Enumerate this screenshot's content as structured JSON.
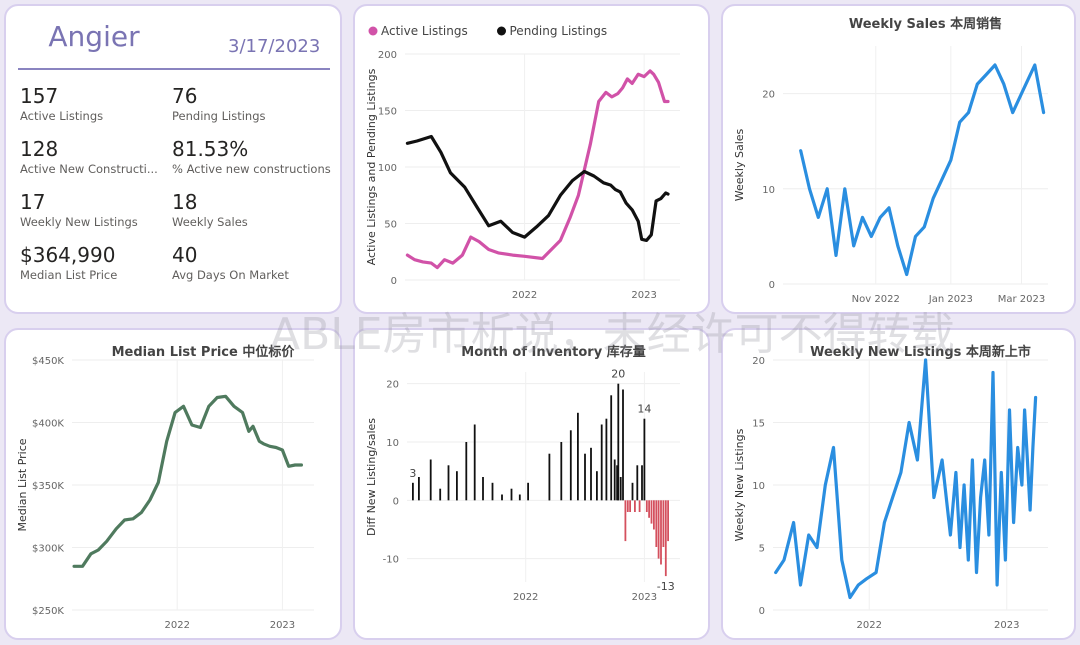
{
  "kpi": {
    "location": "Angier",
    "date": "3/17/2023",
    "items": [
      {
        "value": "157",
        "label": "Active Listings"
      },
      {
        "value": "76",
        "label": "Pending Listings"
      },
      {
        "value": "128",
        "label": "Active New Constructi..."
      },
      {
        "value": "81.53%",
        "label": "% Active new constructions"
      },
      {
        "value": "17",
        "label": "Weekly New Listings"
      },
      {
        "value": "18",
        "label": "Weekly Sales"
      },
      {
        "value": "$364,990",
        "label": "Median List Price"
      },
      {
        "value": "40",
        "label": "Avg Days On Market"
      }
    ]
  },
  "watermark": "ABLE房市析说，未经许可不得转载",
  "chart_data": [
    {
      "id": "listings",
      "type": "line",
      "title": "",
      "ylabel": "Active Listings and Pending Listings",
      "legend_position": "top-left",
      "xlim": [
        2021.0,
        2023.3
      ],
      "ylim": [
        0,
        200
      ],
      "yticks": [
        0,
        50,
        100,
        150,
        200
      ],
      "xticks": [
        {
          "v": 2022.0,
          "label": "2022"
        },
        {
          "v": 2023.0,
          "label": "2023"
        }
      ],
      "series": [
        {
          "name": "Active Listings",
          "color": "#d152a8",
          "x": [
            2021.02,
            2021.08,
            2021.15,
            2021.22,
            2021.27,
            2021.33,
            2021.4,
            2021.48,
            2021.55,
            2021.62,
            2021.7,
            2021.78,
            2021.9,
            2022.0,
            2022.15,
            2022.3,
            2022.38,
            2022.45,
            2022.55,
            2022.62,
            2022.68,
            2022.73,
            2022.78,
            2022.82,
            2022.86,
            2022.9,
            2022.95,
            2023.0,
            2023.05,
            2023.08,
            2023.12,
            2023.17,
            2023.2
          ],
          "y": [
            22,
            18,
            16,
            15,
            11,
            18,
            15,
            22,
            38,
            34,
            27,
            24,
            22,
            21,
            19,
            35,
            55,
            75,
            120,
            158,
            166,
            162,
            165,
            170,
            178,
            174,
            182,
            180,
            185,
            182,
            175,
            158,
            158
          ]
        },
        {
          "name": "Pending Listings",
          "color": "#111111",
          "x": [
            2021.02,
            2021.1,
            2021.22,
            2021.3,
            2021.38,
            2021.5,
            2021.6,
            2021.7,
            2021.8,
            2021.9,
            2022.0,
            2022.1,
            2022.2,
            2022.3,
            2022.4,
            2022.5,
            2022.58,
            2022.66,
            2022.72,
            2022.76,
            2022.8,
            2022.85,
            2022.9,
            2022.95,
            2022.98,
            2023.02,
            2023.06,
            2023.1,
            2023.14,
            2023.18,
            2023.2
          ],
          "y": [
            121,
            123,
            127,
            113,
            95,
            82,
            65,
            48,
            52,
            42,
            38,
            47,
            57,
            75,
            88,
            96,
            92,
            86,
            84,
            80,
            78,
            68,
            62,
            52,
            36,
            35,
            40,
            70,
            72,
            77,
            76
          ]
        }
      ]
    },
    {
      "id": "weekly-sales",
      "type": "line",
      "title": "Weekly Sales 本周销售",
      "ylabel": "Weekly Sales",
      "xlim": [
        2022.62,
        2023.22
      ],
      "ylim": [
        0,
        25
      ],
      "yticks": [
        0,
        10,
        20
      ],
      "xticks": [
        {
          "v": 2022.83,
          "label": "Nov 2022"
        },
        {
          "v": 2023.0,
          "label": "Jan 2023"
        },
        {
          "v": 2023.16,
          "label": "Mar 2023"
        }
      ],
      "series": [
        {
          "name": "",
          "color": "#2a8ee0",
          "x": [
            2022.66,
            2022.68,
            2022.7,
            2022.72,
            2022.74,
            2022.76,
            2022.78,
            2022.8,
            2022.82,
            2022.84,
            2022.86,
            2022.88,
            2022.9,
            2022.92,
            2022.94,
            2022.96,
            2022.98,
            2023.0,
            2023.02,
            2023.04,
            2023.06,
            2023.08,
            2023.1,
            2023.12,
            2023.14,
            2023.16,
            2023.19,
            2023.21
          ],
          "y": [
            14,
            10,
            7,
            10,
            3,
            10,
            4,
            7,
            5,
            7,
            8,
            4,
            1,
            5,
            6,
            9,
            11,
            13,
            17,
            18,
            21,
            22,
            23,
            21,
            18,
            20,
            23,
            18
          ]
        }
      ]
    },
    {
      "id": "median-price",
      "type": "line",
      "title": "Median List Price  中位标价",
      "ylabel": "Median List Price",
      "xlim": [
        2021.0,
        2023.3
      ],
      "ylim": [
        250000,
        450000
      ],
      "yticks": [
        {
          "v": 250000,
          "label": "$250K"
        },
        {
          "v": 300000,
          "label": "$300K"
        },
        {
          "v": 350000,
          "label": "$350K"
        },
        {
          "v": 400000,
          "label": "$400K"
        },
        {
          "v": 450000,
          "label": "$450K"
        }
      ],
      "xticks": [
        {
          "v": 2022.0,
          "label": "2022"
        },
        {
          "v": 2023.0,
          "label": "2023"
        }
      ],
      "series": [
        {
          "name": "",
          "color": "#4f7a5e",
          "x": [
            2021.02,
            2021.1,
            2021.18,
            2021.25,
            2021.33,
            2021.42,
            2021.5,
            2021.58,
            2021.66,
            2021.74,
            2021.82,
            2021.9,
            2021.98,
            2022.06,
            2022.14,
            2022.22,
            2022.3,
            2022.38,
            2022.46,
            2022.54,
            2022.62,
            2022.68,
            2022.72,
            2022.78,
            2022.82,
            2022.88,
            2022.94,
            2023.0,
            2023.06,
            2023.12,
            2023.18
          ],
          "y": [
            285000,
            285000,
            295000,
            298000,
            305000,
            315000,
            322000,
            323000,
            328000,
            338000,
            352000,
            385000,
            408000,
            413000,
            398000,
            396000,
            413000,
            420000,
            421000,
            413000,
            408000,
            393000,
            397000,
            385000,
            383000,
            381000,
            380000,
            378000,
            365000,
            366000,
            366000
          ]
        }
      ]
    },
    {
      "id": "inventory",
      "type": "bar",
      "title": "Month of Inventory 库存量",
      "ylabel": "Diff New Listing/sales",
      "xlim": [
        2021.0,
        2023.3
      ],
      "ylim": [
        -14,
        22
      ],
      "yticks": [
        -10,
        0,
        10,
        20
      ],
      "xticks": [
        {
          "v": 2022.0,
          "label": "2022"
        },
        {
          "v": 2023.0,
          "label": "2023"
        }
      ],
      "positive_color": "#111111",
      "negative_color": "#d4505e",
      "annotations": [
        {
          "x": 2021.05,
          "label": "3"
        },
        {
          "x": 2022.78,
          "label": "20"
        },
        {
          "x": 2023.0,
          "label": "14"
        },
        {
          "x": 2023.18,
          "label": "-13"
        }
      ],
      "x": [
        2021.05,
        2021.1,
        2021.2,
        2021.28,
        2021.35,
        2021.42,
        2021.5,
        2021.57,
        2021.64,
        2021.72,
        2021.8,
        2021.88,
        2021.95,
        2022.02,
        2022.2,
        2022.3,
        2022.38,
        2022.44,
        2022.5,
        2022.55,
        2022.6,
        2022.64,
        2022.68,
        2022.72,
        2022.75,
        2022.77,
        2022.78,
        2022.8,
        2022.82,
        2022.84,
        2022.86,
        2022.88,
        2022.9,
        2022.92,
        2022.94,
        2022.96,
        2022.98,
        2023.0,
        2023.02,
        2023.04,
        2023.06,
        2023.08,
        2023.1,
        2023.12,
        2023.14,
        2023.16,
        2023.18,
        2023.2
      ],
      "y": [
        3,
        4,
        7,
        2,
        6,
        5,
        10,
        13,
        4,
        3,
        1,
        2,
        1,
        3,
        8,
        10,
        12,
        15,
        8,
        9,
        5,
        13,
        14,
        18,
        7,
        6,
        20,
        4,
        19,
        -7,
        -2,
        -2,
        3,
        -2,
        6,
        -2,
        6,
        14,
        -2,
        -3,
        -4,
        -5,
        -8,
        -10,
        -11,
        -8,
        -13,
        -7
      ]
    },
    {
      "id": "weekly-new-listings",
      "type": "line",
      "title": "Weekly New Listings  本周新上市",
      "ylabel": "Weekly New Listings",
      "xlim": [
        2021.3,
        2023.3
      ],
      "ylim": [
        0,
        20
      ],
      "yticks": [
        0,
        5,
        10,
        15,
        20
      ],
      "xticks": [
        {
          "v": 2022.0,
          "label": "2022"
        },
        {
          "v": 2023.0,
          "label": "2023"
        }
      ],
      "series": [
        {
          "name": "",
          "color": "#2a8ee0",
          "x": [
            2021.32,
            2021.38,
            2021.45,
            2021.5,
            2021.56,
            2021.62,
            2021.68,
            2021.74,
            2021.8,
            2021.86,
            2021.92,
            2021.98,
            2022.05,
            2022.11,
            2022.17,
            2022.23,
            2022.29,
            2022.35,
            2022.41,
            2022.47,
            2022.53,
            2022.59,
            2022.63,
            2022.66,
            2022.69,
            2022.72,
            2022.75,
            2022.78,
            2022.81,
            2022.84,
            2022.87,
            2022.9,
            2022.93,
            2022.96,
            2022.99,
            2023.02,
            2023.05,
            2023.08,
            2023.11,
            2023.13,
            2023.15,
            2023.17,
            2023.19,
            2023.21
          ],
          "y": [
            3,
            4,
            7,
            2,
            6,
            5,
            10,
            13,
            4,
            1,
            2,
            2.5,
            3,
            7,
            9,
            11,
            15,
            12,
            20,
            9,
            12,
            6,
            11,
            5,
            10,
            4,
            12,
            3,
            9,
            12,
            6,
            19,
            2,
            11,
            4,
            16,
            7,
            13,
            10,
            16,
            12,
            8,
            13,
            17
          ]
        }
      ]
    }
  ]
}
